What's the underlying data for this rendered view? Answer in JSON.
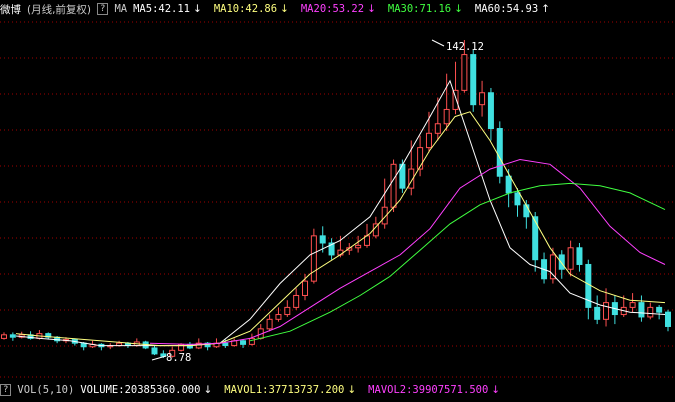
{
  "header": {
    "title": "微博",
    "mode": "(月线,前复权)",
    "help": "?",
    "ma_label": "MA",
    "ma5": "MA5:42.11",
    "ma5_arrow": "↓",
    "ma10": "MA10:42.86",
    "ma10_arrow": "↓",
    "ma20": "MA20:53.22",
    "ma20_arrow": "↓",
    "ma30": "MA30:71.16",
    "ma30_arrow": "↓",
    "ma60": "MA60:54.93",
    "ma60_arrow": "↑"
  },
  "footer": {
    "help": "?",
    "vol_label": "VOL(5,10)",
    "volume": "VOLUME:20385360.000",
    "volume_arrow": "↓",
    "mavol1": "MAVOL1:37713737.200",
    "mavol1_arrow": "↓",
    "mavol2": "MAVOL2:39907571.500",
    "mavol2_arrow": "↓"
  },
  "colors": {
    "up": "#ff5050",
    "down": "#40e0e0",
    "ma5": "#ffffff",
    "ma10": "#ffff80",
    "ma20": "#ff40ff",
    "ma30": "#40ff40",
    "ma60": "#ffffff",
    "grid": "#a00000"
  },
  "chart_data": {
    "type": "candlestick",
    "annotations": {
      "high": "142.12",
      "low": "8.78"
    },
    "ylim": [
      0,
      150
    ],
    "candles": [
      [
        17,
        18.5,
        19.5,
        16.5
      ],
      [
        18.5,
        17.5,
        19.5,
        16
      ],
      [
        17.5,
        18.5,
        19.8,
        17
      ],
      [
        18.5,
        17,
        20,
        16.5
      ],
      [
        17,
        19,
        20.5,
        16.5
      ],
      [
        19,
        17.5,
        19.5,
        16.5
      ],
      [
        17.5,
        16,
        18,
        15
      ],
      [
        16,
        16.5,
        17.5,
        15
      ],
      [
        16.5,
        15,
        17,
        14
      ],
      [
        15,
        13.5,
        15.5,
        12
      ],
      [
        13.5,
        14.5,
        16,
        13
      ],
      [
        14.5,
        13.5,
        15,
        12
      ],
      [
        13.5,
        14,
        15,
        12.5
      ],
      [
        14,
        15,
        16,
        13.5
      ],
      [
        15,
        14,
        15.5,
        13
      ],
      [
        14,
        15.5,
        17,
        13.5
      ],
      [
        15.5,
        13,
        16,
        12.5
      ],
      [
        13,
        10.5,
        14,
        10
      ],
      [
        10.5,
        9.5,
        12,
        8.78
      ],
      [
        9.5,
        12,
        13.5,
        9
      ],
      [
        12,
        14.5,
        15,
        11.5
      ],
      [
        14.5,
        13,
        15.5,
        12.5
      ],
      [
        13,
        15,
        17,
        12.5
      ],
      [
        15,
        13.5,
        15.5,
        12
      ],
      [
        13.5,
        15,
        17,
        13
      ],
      [
        15,
        14,
        16.5,
        13
      ],
      [
        14,
        16,
        17,
        13.5
      ],
      [
        16,
        14.5,
        16.5,
        13
      ],
      [
        14.5,
        17,
        19,
        14
      ],
      [
        17,
        21,
        23,
        16.5
      ],
      [
        21,
        25,
        27,
        20
      ],
      [
        25,
        27,
        30,
        24
      ],
      [
        27,
        30,
        33,
        26
      ],
      [
        30,
        35,
        38,
        29
      ],
      [
        35,
        41,
        44,
        33
      ],
      [
        41,
        60,
        63,
        40
      ],
      [
        60,
        57,
        64,
        53
      ],
      [
        57,
        52,
        59,
        50
      ],
      [
        52,
        54,
        60,
        51
      ],
      [
        54,
        55,
        57,
        52
      ],
      [
        55,
        56,
        60,
        53
      ],
      [
        56,
        60,
        65,
        55
      ],
      [
        60,
        65,
        68,
        59
      ],
      [
        65,
        72,
        84,
        63
      ],
      [
        72,
        90,
        92,
        70
      ],
      [
        90,
        80,
        92,
        78
      ],
      [
        80,
        88,
        100,
        77
      ],
      [
        88,
        97,
        102,
        85
      ],
      [
        97,
        103,
        112,
        95
      ],
      [
        103,
        107,
        118,
        100
      ],
      [
        107,
        113,
        128,
        104
      ],
      [
        113,
        121,
        133,
        111
      ],
      [
        121,
        136,
        142.12,
        120
      ],
      [
        136,
        115,
        138,
        112
      ],
      [
        115,
        120,
        125,
        110
      ],
      [
        120,
        105,
        122,
        100
      ],
      [
        105,
        85,
        108,
        82
      ],
      [
        85,
        78,
        88,
        72
      ],
      [
        78,
        73,
        80,
        68
      ],
      [
        73,
        68,
        75,
        63
      ],
      [
        68,
        50,
        70,
        45
      ],
      [
        50,
        42,
        53,
        40
      ],
      [
        42,
        52,
        55,
        40
      ],
      [
        52,
        46,
        54,
        42
      ],
      [
        46,
        55,
        58,
        43
      ],
      [
        55,
        48,
        57,
        45
      ],
      [
        48,
        30,
        50,
        25
      ],
      [
        30,
        25,
        35,
        23
      ],
      [
        25,
        32,
        38,
        22
      ],
      [
        32,
        27,
        35,
        23
      ],
      [
        27,
        30,
        35,
        26
      ],
      [
        30,
        32,
        36,
        28
      ],
      [
        32,
        26,
        35,
        24
      ],
      [
        26,
        30,
        32,
        25
      ],
      [
        30,
        28,
        31,
        25
      ],
      [
        28,
        22,
        29,
        20
      ]
    ],
    "ma5": [
      [
        16,
        18
      ],
      [
        40,
        17
      ],
      [
        70,
        16
      ],
      [
        100,
        14
      ],
      [
        130,
        14
      ],
      [
        160,
        14
      ],
      [
        190,
        14
      ],
      [
        220,
        15
      ],
      [
        250,
        25
      ],
      [
        280,
        40
      ],
      [
        310,
        52
      ],
      [
        340,
        58
      ],
      [
        370,
        68
      ],
      [
        400,
        88
      ],
      [
        430,
        110
      ],
      [
        450,
        125
      ],
      [
        470,
        100
      ],
      [
        490,
        75
      ],
      [
        510,
        55
      ],
      [
        530,
        48
      ],
      [
        550,
        45
      ],
      [
        570,
        36
      ],
      [
        600,
        31
      ],
      [
        630,
        28
      ],
      [
        665,
        27
      ]
    ],
    "ma10": [
      [
        16,
        19
      ],
      [
        40,
        18
      ],
      [
        70,
        17
      ],
      [
        100,
        16
      ],
      [
        130,
        15
      ],
      [
        160,
        14
      ],
      [
        190,
        14
      ],
      [
        220,
        15
      ],
      [
        250,
        20
      ],
      [
        280,
        32
      ],
      [
        310,
        44
      ],
      [
        340,
        52
      ],
      [
        370,
        61
      ],
      [
        400,
        75
      ],
      [
        430,
        96
      ],
      [
        455,
        110
      ],
      [
        470,
        112
      ],
      [
        490,
        100
      ],
      [
        510,
        85
      ],
      [
        530,
        70
      ],
      [
        550,
        55
      ],
      [
        570,
        44
      ],
      [
        600,
        37
      ],
      [
        630,
        33
      ],
      [
        665,
        32
      ]
    ],
    "ma20": [
      [
        150,
        15
      ],
      [
        190,
        14.5
      ],
      [
        220,
        15
      ],
      [
        250,
        17
      ],
      [
        280,
        22
      ],
      [
        310,
        30
      ],
      [
        340,
        38
      ],
      [
        370,
        45
      ],
      [
        400,
        52
      ],
      [
        430,
        63
      ],
      [
        460,
        80
      ],
      [
        490,
        88
      ],
      [
        520,
        92
      ],
      [
        550,
        90
      ],
      [
        580,
        80
      ],
      [
        610,
        64
      ],
      [
        640,
        53
      ],
      [
        665,
        48
      ]
    ],
    "ma30": [
      [
        250,
        16
      ],
      [
        290,
        20
      ],
      [
        330,
        28
      ],
      [
        360,
        35
      ],
      [
        390,
        43
      ],
      [
        420,
        54
      ],
      [
        450,
        65
      ],
      [
        480,
        73
      ],
      [
        510,
        78
      ],
      [
        540,
        81
      ],
      [
        570,
        82
      ],
      [
        600,
        81
      ],
      [
        630,
        78
      ],
      [
        665,
        71
      ]
    ]
  }
}
